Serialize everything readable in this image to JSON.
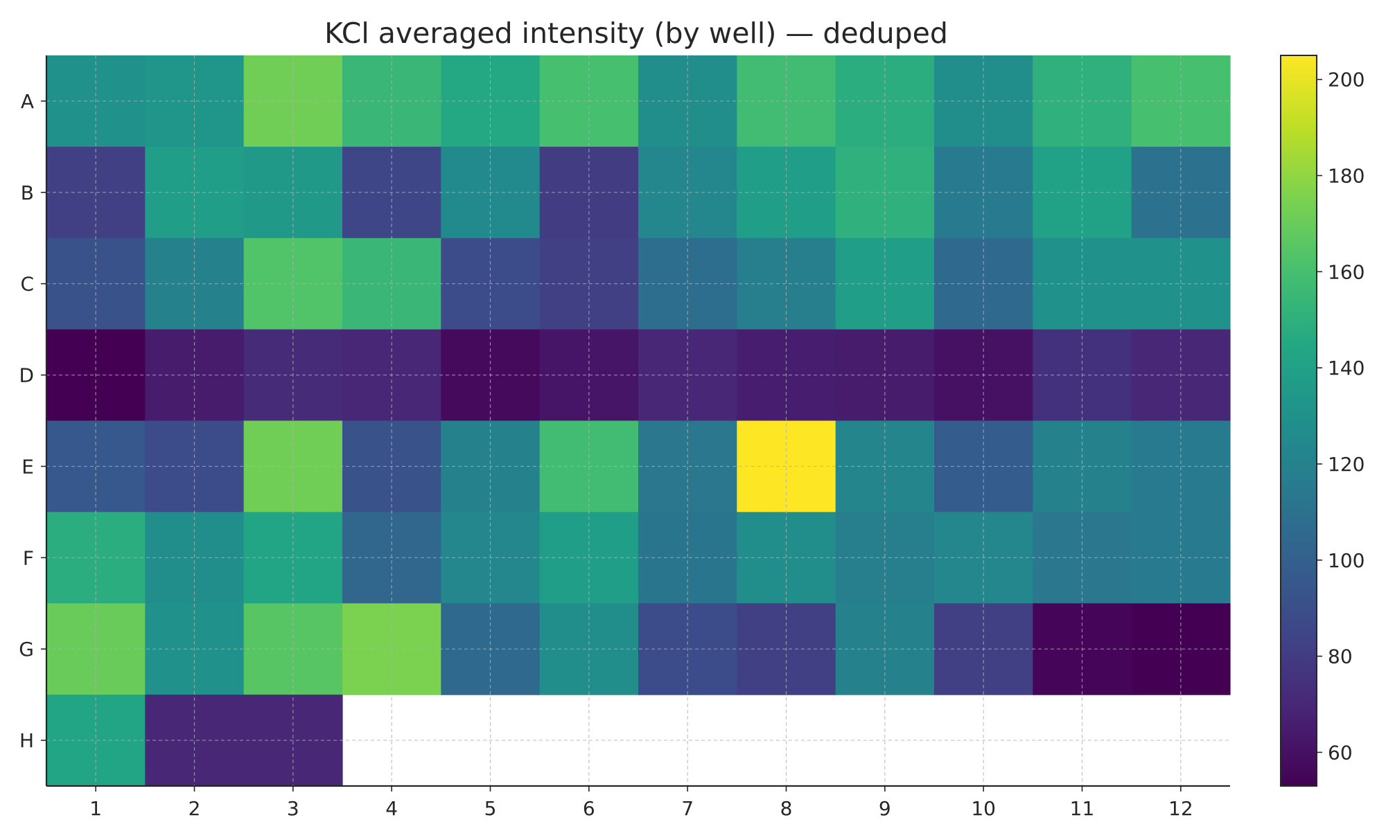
{
  "chart_data": {
    "type": "heatmap",
    "title": "KCl averaged intensity (by well) — deduped",
    "xlabel": "",
    "ylabel": "",
    "rows": [
      "A",
      "B",
      "C",
      "D",
      "E",
      "F",
      "G",
      "H"
    ],
    "columns": [
      "1",
      "2",
      "3",
      "4",
      "5",
      "6",
      "7",
      "8",
      "9",
      "10",
      "11",
      "12"
    ],
    "values": [
      [
        130,
        132,
        172,
        155,
        145,
        160,
        128,
        158,
        148,
        128,
        150,
        160
      ],
      [
        82,
        138,
        135,
        85,
        125,
        80,
        123,
        138,
        150,
        115,
        140,
        110
      ],
      [
        92,
        120,
        163,
        155,
        88,
        82,
        108,
        118,
        138,
        105,
        130,
        130
      ],
      [
        53,
        65,
        72,
        70,
        57,
        62,
        70,
        66,
        65,
        60,
        75,
        70
      ],
      [
        95,
        88,
        172,
        92,
        120,
        158,
        113,
        205,
        122,
        98,
        120,
        115
      ],
      [
        148,
        128,
        143,
        103,
        123,
        138,
        112,
        128,
        118,
        123,
        113,
        115
      ],
      [
        170,
        130,
        165,
        175,
        105,
        128,
        88,
        82,
        120,
        82,
        55,
        53
      ],
      [
        143,
        70,
        70,
        null,
        null,
        null,
        null,
        null,
        null,
        null,
        null,
        null
      ]
    ],
    "colorbar": {
      "colormap": "viridis",
      "range": [
        53,
        205
      ],
      "ticks": [
        60,
        80,
        100,
        120,
        140,
        160,
        180,
        200
      ]
    },
    "grid": true
  }
}
